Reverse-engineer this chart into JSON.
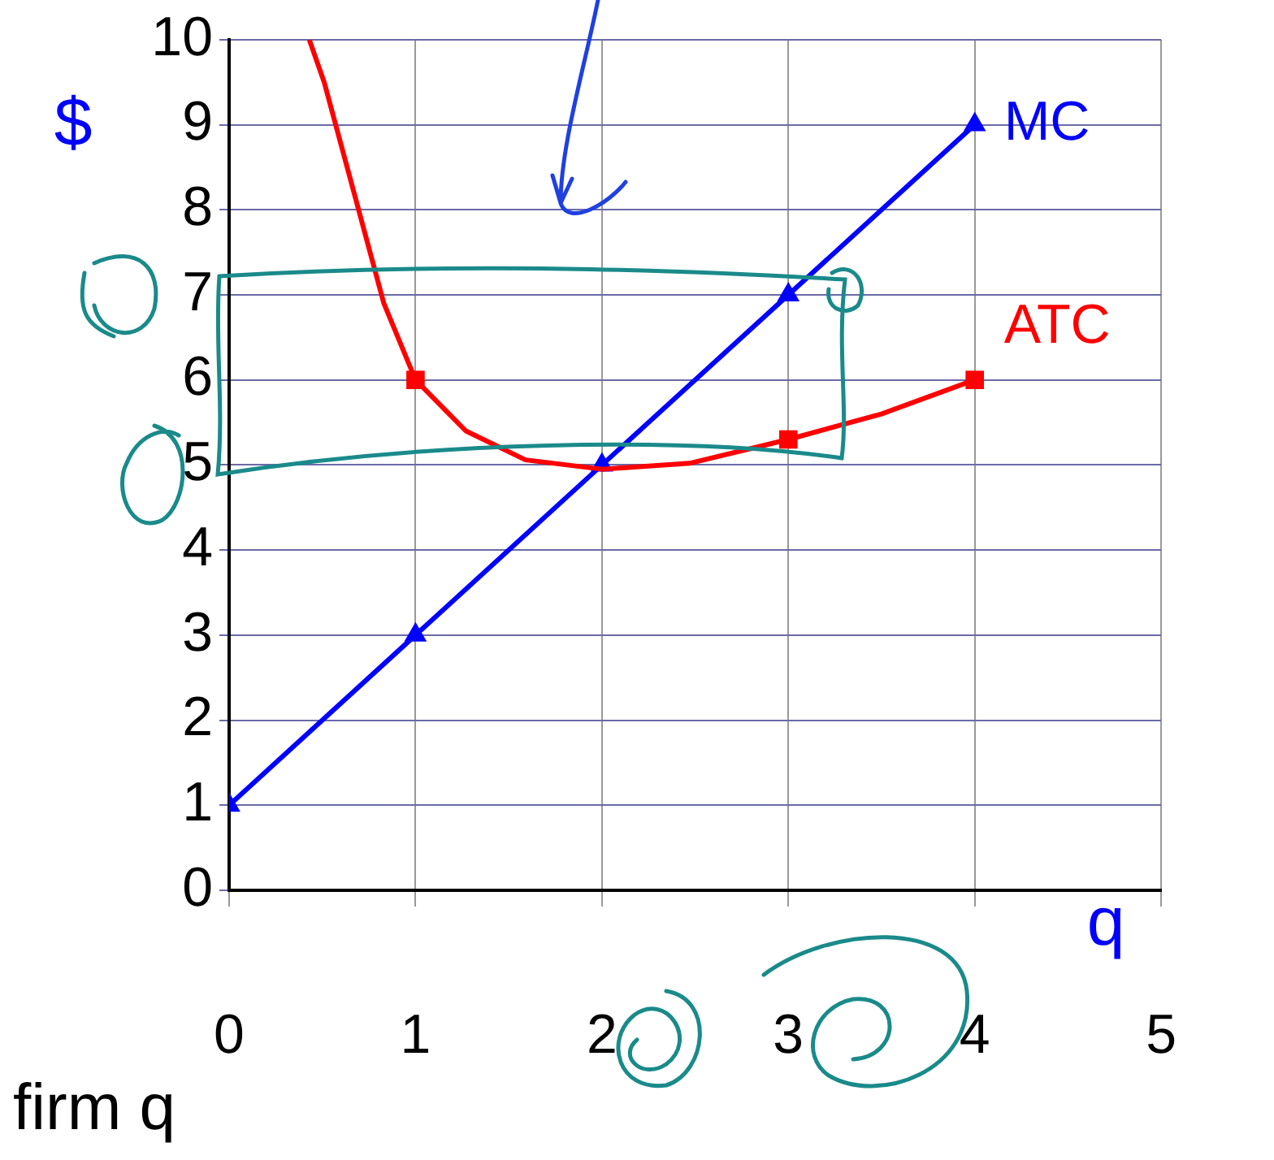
{
  "chart_data": {
    "type": "line",
    "xlabel": "q",
    "ylabel": "$",
    "xlim": [
      0,
      5
    ],
    "xticks": [
      0,
      1,
      2,
      3,
      4,
      5
    ],
    "ylim": [
      0,
      10
    ],
    "yticks": [
      0,
      1,
      2,
      3,
      4,
      5,
      6,
      7,
      8,
      9,
      10
    ],
    "grid": true,
    "legend": false,
    "series": [
      {
        "name": "MC",
        "color": "#0000ff",
        "marker": "triangle",
        "x": [
          0,
          1,
          2,
          3,
          4
        ],
        "values": [
          1,
          3,
          5,
          7,
          9
        ]
      },
      {
        "name": "ATC",
        "color": "#ff0000",
        "marker": "none",
        "x": [
          0.43,
          0.51,
          0.67,
          0.83,
          1,
          1.27,
          1.59,
          2,
          2.47,
          3,
          3.5,
          4
        ],
        "values": [
          10,
          9.5,
          8.2,
          6.9,
          6,
          5.4,
          5.06,
          4.95,
          5.02,
          5.3,
          5.6,
          6
        ]
      },
      {
        "type": "scatter",
        "color": "#ff0000",
        "marker": "square",
        "x": [
          1,
          3,
          4
        ],
        "values": [
          6,
          5.3,
          6
        ]
      }
    ],
    "annotations": [
      "firm q"
    ]
  }
}
